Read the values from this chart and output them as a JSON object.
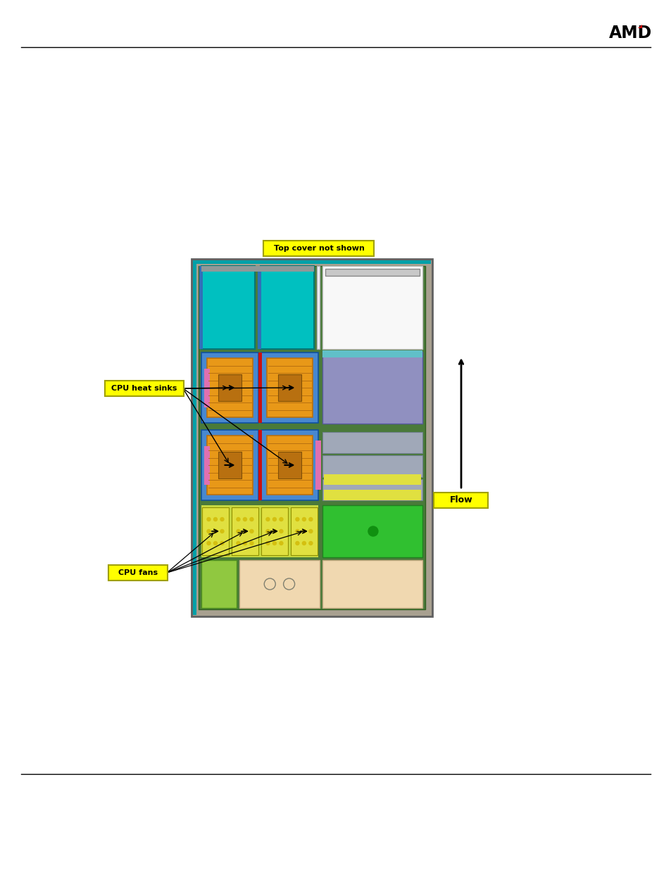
{
  "fig_width": 9.54,
  "fig_height": 12.35,
  "top_label": "Top cover not shown",
  "cpu_heatsinks_label": "CPU heat sinks",
  "cpu_fans_label": "CPU fans",
  "flow_label": "Flow",
  "colors": {
    "background": "#ffffff",
    "chassis_bg": "#a8a090",
    "pcb_green": "#4a7a3a",
    "memory_cyan": "#00c0c0",
    "memory_blue_dark": "#3070b8",
    "memory_blue_med": "#4888d0",
    "heatsink_orange": "#e89818",
    "heatsink_dark": "#b87010",
    "fan_yellow": "#e0e040",
    "fan_green": "#78c030",
    "pink_connector": "#e070b0",
    "red_strip": "#cc1010",
    "white_area": "#f4f4f4",
    "beige_area": "#f0d8b0",
    "power_lavender": "#9090c0",
    "gray_slots": "#a0a8b8",
    "bright_green": "#30c030",
    "label_yellow": "#ffff00",
    "label_border": "#a0a000",
    "cyan_strip": "#00a8a8",
    "light_green_bottom": "#90c840"
  }
}
